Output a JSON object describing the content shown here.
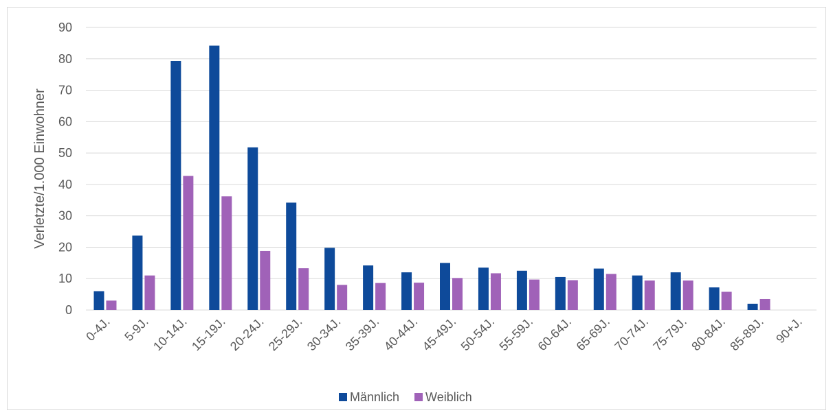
{
  "chart_data": {
    "type": "bar",
    "y_label": "Verletzte/1.000 Einwohner",
    "categories": [
      "0-4J.",
      "5-9J.",
      "10-14J.",
      "15-19J.",
      "20-24J.",
      "25-29J.",
      "30-34J.",
      "35-39J.",
      "40-44J.",
      "45-49J.",
      "50-54J.",
      "55-59J.",
      "60-64J.",
      "65-69J.",
      "70-74J.",
      "75-79J.",
      "80-84J.",
      "85-89J.",
      "90+J."
    ],
    "series": [
      {
        "name": "Männlich",
        "color": "#0e4a9a",
        "values": [
          6,
          23.7,
          79.3,
          84.2,
          51.8,
          34.2,
          19.8,
          14.2,
          12,
          15,
          13.5,
          12.5,
          10.5,
          13.2,
          11,
          12,
          7.2,
          2,
          0
        ]
      },
      {
        "name": "Weiblich",
        "color": "#a062b8",
        "values": [
          3,
          11,
          42.7,
          36.2,
          18.8,
          13.3,
          8,
          8.6,
          8.7,
          10.2,
          11.7,
          9.7,
          9.5,
          11.5,
          9.4,
          9.4,
          5.8,
          3.5,
          0
        ]
      }
    ],
    "ylim": [
      0,
      90
    ],
    "yticks": [
      0,
      10,
      20,
      30,
      40,
      50,
      60,
      70,
      80,
      90
    ],
    "grid": true,
    "legend": "bottom"
  }
}
